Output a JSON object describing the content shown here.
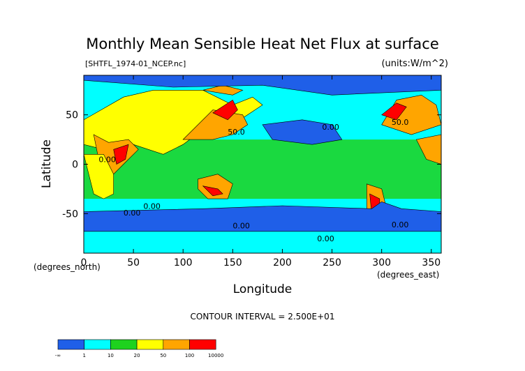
{
  "chart_data": {
    "type": "heatmap",
    "title": "Monthly Mean Sensible Heat Net Flux at surface",
    "subtitle_left": "[SHTFL_1974-01_NCEP.nc]",
    "subtitle_right": "(units:W/m^2)",
    "xlabel": "Longitude",
    "ylabel": "Latitude",
    "x_units": "(degrees_east)",
    "y_units": "(degrees_north)",
    "xlim": [
      0,
      360
    ],
    "ylim": [
      -90,
      90
    ],
    "x_ticks": [
      0,
      50,
      100,
      150,
      200,
      250,
      300,
      350
    ],
    "y_ticks": [
      50,
      0,
      -50
    ],
    "contour_interval_label": "CONTOUR INTERVAL = 2.500E+01",
    "contour_labels": [
      "50.0",
      "0.00",
      "50.0",
      "0.00",
      "0.00",
      "0.00",
      "0.00",
      "0.00",
      "0.00"
    ],
    "colorbar": {
      "boundaries": [
        "-∞",
        "1",
        "10",
        "20",
        "50",
        "100",
        "10000"
      ],
      "colors": [
        "#1f5fe8",
        "#00ffff",
        "#1ed21e",
        "#ffff00",
        "#ffa500",
        "#ff0000"
      ]
    },
    "regions": [
      {
        "level": 3,
        "points": [
          [
            0,
            45
          ],
          [
            40,
            68
          ],
          [
            70,
            75
          ],
          [
            120,
            75
          ],
          [
            150,
            60
          ],
          [
            170,
            68
          ],
          [
            180,
            60
          ],
          [
            150,
            40
          ],
          [
            120,
            35
          ],
          [
            100,
            20
          ],
          [
            80,
            10
          ],
          [
            50,
            20
          ],
          [
            20,
            15
          ],
          [
            0,
            20
          ]
        ]
      },
      {
        "level": 4,
        "points": [
          [
            100,
            25
          ],
          [
            130,
            55
          ],
          [
            160,
            50
          ],
          [
            165,
            40
          ],
          [
            150,
            30
          ],
          [
            130,
            25
          ]
        ]
      },
      {
        "level": 5,
        "points": [
          [
            130,
            52
          ],
          [
            150,
            65
          ],
          [
            155,
            55
          ],
          [
            145,
            45
          ]
        ]
      },
      {
        "level": 4,
        "points": [
          [
            10,
            30
          ],
          [
            25,
            22
          ],
          [
            45,
            25
          ],
          [
            55,
            15
          ],
          [
            40,
            0
          ],
          [
            30,
            -10
          ],
          [
            15,
            5
          ]
        ]
      },
      {
        "level": 5,
        "points": [
          [
            30,
            15
          ],
          [
            45,
            20
          ],
          [
            42,
            5
          ],
          [
            33,
            0
          ]
        ]
      },
      {
        "level": 4,
        "points": [
          [
            120,
            75
          ],
          [
            150,
            70
          ],
          [
            160,
            75
          ],
          [
            140,
            80
          ]
        ]
      },
      {
        "level": 4,
        "points": [
          [
            300,
            40
          ],
          [
            315,
            65
          ],
          [
            340,
            70
          ],
          [
            355,
            60
          ],
          [
            360,
            40
          ],
          [
            330,
            30
          ]
        ]
      },
      {
        "level": 5,
        "points": [
          [
            300,
            50
          ],
          [
            315,
            62
          ],
          [
            325,
            58
          ],
          [
            315,
            45
          ]
        ]
      },
      {
        "level": 4,
        "points": [
          [
            335,
            25
          ],
          [
            360,
            30
          ],
          [
            360,
            0
          ],
          [
            345,
            5
          ]
        ]
      },
      {
        "level": 3,
        "points": [
          [
            0,
            10
          ],
          [
            20,
            10
          ],
          [
            30,
            -10
          ],
          [
            30,
            -30
          ],
          [
            20,
            -35
          ],
          [
            10,
            -30
          ],
          [
            5,
            -10
          ]
        ]
      },
      {
        "level": 4,
        "points": [
          [
            115,
            -15
          ],
          [
            135,
            -10
          ],
          [
            150,
            -20
          ],
          [
            145,
            -35
          ],
          [
            125,
            -35
          ],
          [
            115,
            -25
          ]
        ]
      },
      {
        "level": 5,
        "points": [
          [
            120,
            -22
          ],
          [
            135,
            -25
          ],
          [
            140,
            -30
          ],
          [
            130,
            -32
          ]
        ]
      },
      {
        "level": 4,
        "points": [
          [
            285,
            -20
          ],
          [
            300,
            -25
          ],
          [
            305,
            -45
          ],
          [
            295,
            -55
          ],
          [
            285,
            -45
          ]
        ]
      },
      {
        "level": 5,
        "points": [
          [
            288,
            -30
          ],
          [
            298,
            -35
          ],
          [
            298,
            -50
          ],
          [
            290,
            -50
          ]
        ]
      },
      {
        "level": 0,
        "points": [
          [
            0,
            -48
          ],
          [
            120,
            -45
          ],
          [
            200,
            -42
          ],
          [
            290,
            -45
          ],
          [
            300,
            -38
          ],
          [
            320,
            -45
          ],
          [
            360,
            -48
          ],
          [
            360,
            -68
          ],
          [
            0,
            -68
          ]
        ]
      },
      {
        "level": 0,
        "points": [
          [
            0,
            90
          ],
          [
            360,
            90
          ],
          [
            360,
            75
          ],
          [
            250,
            70
          ],
          [
            180,
            80
          ],
          [
            90,
            78
          ],
          [
            0,
            85
          ]
        ]
      },
      {
        "level": 0,
        "points": [
          [
            180,
            40
          ],
          [
            220,
            45
          ],
          [
            250,
            40
          ],
          [
            260,
            25
          ],
          [
            230,
            20
          ],
          [
            190,
            25
          ]
        ]
      }
    ]
  }
}
